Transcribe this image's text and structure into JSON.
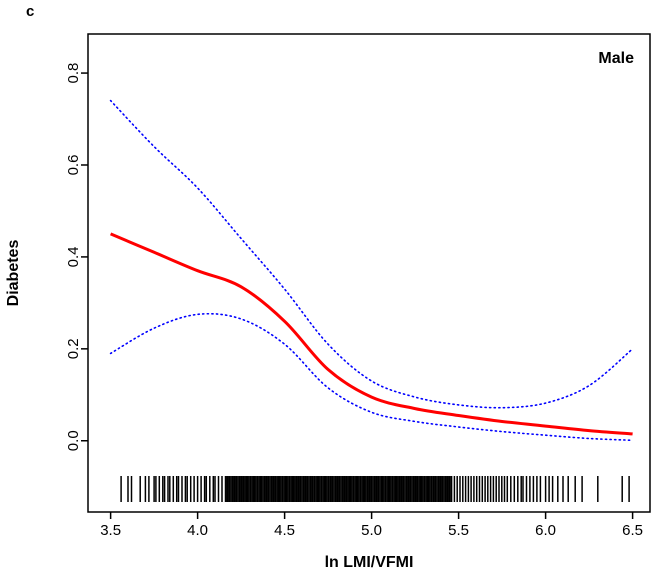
{
  "figure": {
    "panel_label": "c",
    "background": "#ffffff"
  },
  "chart_data": {
    "type": "line",
    "title": "",
    "xlabel": "ln LMI/VFMI",
    "ylabel": "Diabetes",
    "annotation": "Male",
    "grid": false,
    "legend_position": "top-right-inside",
    "xlim": [
      3.37,
      6.6
    ],
    "ylim": [
      -0.155,
      0.885
    ],
    "x_ticks": {
      "values": [
        3.5,
        4.0,
        4.5,
        5.0,
        5.5,
        6.0,
        6.5
      ],
      "labels": [
        "3.5",
        "4.0",
        "4.5",
        "5.0",
        "5.5",
        "6.0",
        "6.5"
      ]
    },
    "y_ticks": {
      "values": [
        0.0,
        0.2,
        0.4,
        0.6,
        0.8
      ],
      "labels": [
        "0.0",
        "0.2",
        "0.4",
        "0.6",
        "0.8"
      ]
    },
    "x": [
      3.5,
      3.75,
      4.0,
      4.25,
      4.5,
      4.75,
      5.0,
      5.25,
      5.5,
      5.75,
      6.0,
      6.25,
      6.5
    ],
    "series": [
      {
        "name": "ci-upper",
        "role": "confidence-upper",
        "color": "#0000ff",
        "style": "dotted",
        "width": 1.6,
        "values": [
          0.74,
          0.64,
          0.55,
          0.44,
          0.33,
          0.21,
          0.13,
          0.095,
          0.078,
          0.072,
          0.082,
          0.12,
          0.2
        ]
      },
      {
        "name": "ci-lower",
        "role": "confidence-lower",
        "color": "#0000ff",
        "style": "dotted",
        "width": 1.6,
        "values": [
          0.19,
          0.245,
          0.275,
          0.265,
          0.21,
          0.115,
          0.062,
          0.042,
          0.03,
          0.02,
          0.012,
          0.005,
          0.001
        ]
      },
      {
        "name": "fit",
        "role": "estimate",
        "color": "#ff0000",
        "style": "solid",
        "width": 3,
        "values": [
          0.45,
          0.41,
          0.37,
          0.335,
          0.26,
          0.155,
          0.095,
          0.07,
          0.055,
          0.042,
          0.032,
          0.022,
          0.015
        ]
      }
    ],
    "rug": {
      "color": "#000000",
      "ticks": [
        3.56,
        3.6,
        3.62,
        3.67,
        3.7,
        3.72,
        3.75,
        3.76,
        3.78,
        3.8,
        3.81,
        3.83,
        3.84,
        3.86,
        3.88,
        3.89,
        3.91,
        3.93,
        3.94,
        3.96,
        3.98,
        4.0,
        4.02,
        4.04,
        4.05,
        4.07,
        4.09,
        4.1,
        4.12,
        4.14,
        5.8,
        5.82,
        5.84,
        5.86,
        5.87,
        5.89,
        5.91,
        5.93,
        5.95,
        5.97,
        6.0,
        6.02,
        6.04,
        6.07,
        6.1,
        6.13,
        6.17,
        6.21,
        6.3,
        6.44,
        6.48
      ],
      "dense_ranges": [
        {
          "from": 4.16,
          "to": 5.46,
          "step": 0.008
        },
        {
          "from": 5.46,
          "to": 5.78,
          "step": 0.016
        }
      ]
    }
  }
}
